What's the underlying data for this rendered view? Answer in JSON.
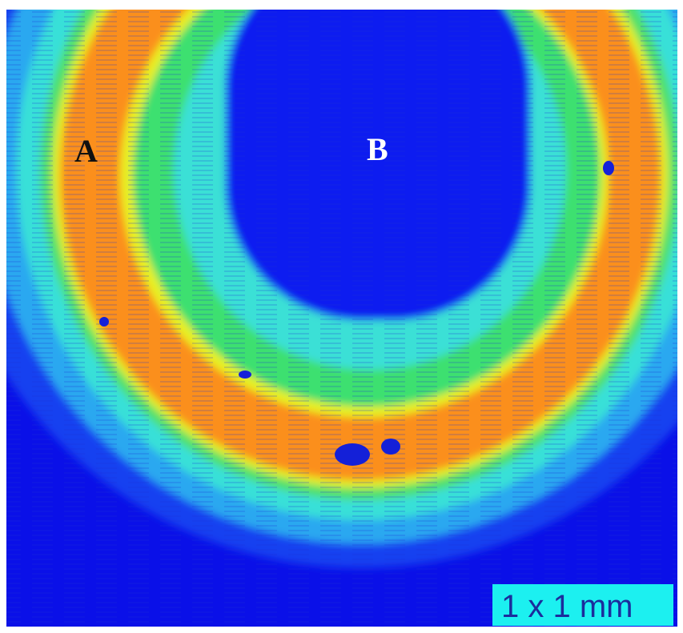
{
  "labels": {
    "a": "A",
    "b": "B"
  },
  "scale_bar": "1 x 1 mm"
}
